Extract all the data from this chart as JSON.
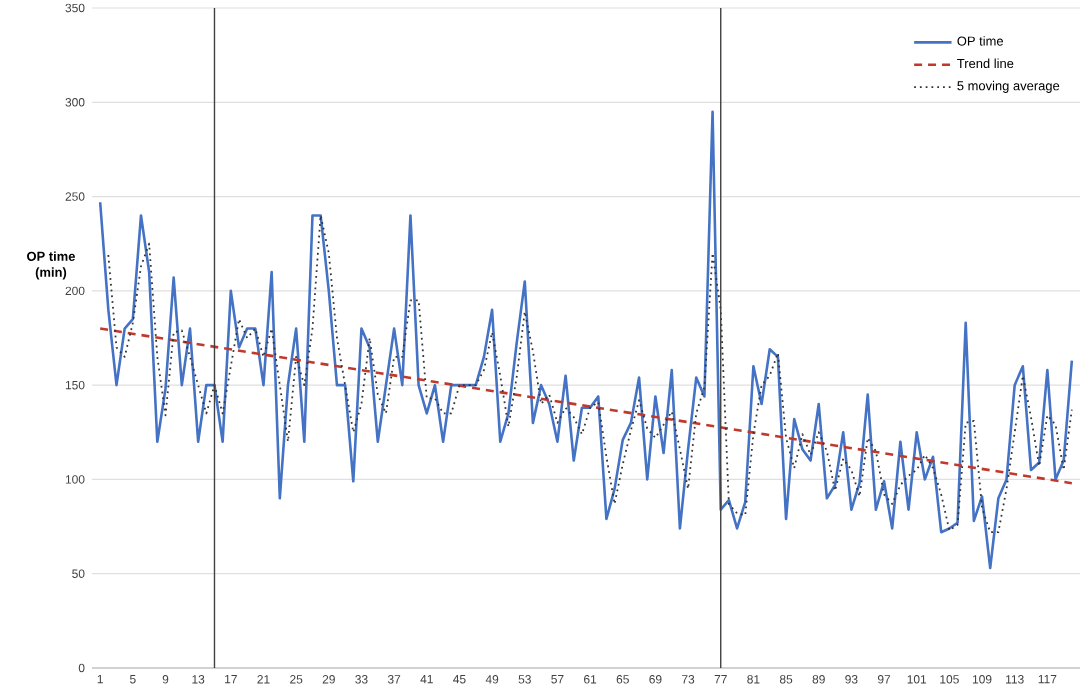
{
  "chart_data": {
    "type": "line",
    "ylabel": "OP time (min)",
    "marker": "none",
    "grid": "y",
    "legend": "top right",
    "x": [
      1,
      2,
      3,
      4,
      5,
      6,
      7,
      8,
      9,
      10,
      11,
      12,
      13,
      14,
      15,
      16,
      17,
      18,
      19,
      20,
      21,
      22,
      23,
      24,
      25,
      26,
      27,
      28,
      29,
      30,
      31,
      32,
      33,
      34,
      35,
      36,
      37,
      38,
      39,
      40,
      41,
      42,
      43,
      44,
      45,
      46,
      47,
      48,
      49,
      50,
      51,
      52,
      53,
      54,
      55,
      56,
      57,
      58,
      59,
      60,
      61,
      62,
      63,
      64,
      65,
      66,
      67,
      68,
      69,
      70,
      71,
      72,
      73,
      74,
      75,
      76,
      77,
      78,
      79,
      80,
      81,
      82,
      83,
      84,
      85,
      86,
      87,
      88,
      89,
      90,
      91,
      92,
      93,
      94,
      95,
      96,
      97,
      98,
      99,
      100,
      101,
      102,
      103,
      104,
      105,
      106,
      107,
      108,
      109,
      110,
      111,
      112,
      113,
      114,
      115,
      116,
      117,
      118,
      119,
      120
    ],
    "xlim": [
      0,
      121
    ],
    "xticks": [
      1,
      5,
      9,
      13,
      17,
      21,
      25,
      29,
      33,
      37,
      41,
      45,
      49,
      53,
      57,
      61,
      65,
      69,
      73,
      77,
      81,
      85,
      89,
      93,
      97,
      101,
      105,
      109,
      113,
      117
    ],
    "ylim": [
      0,
      350
    ],
    "yticks": [
      0,
      50,
      100,
      150,
      200,
      250,
      300,
      350
    ],
    "ref_lines": [
      {
        "axis": "x",
        "value": 15,
        "color": "#404040"
      },
      {
        "axis": "x",
        "value": 77,
        "color": "#404040"
      }
    ],
    "series": [
      {
        "name": "OP time",
        "color": "#4472c4",
        "line_style": "solid",
        "values": [
          247,
          190,
          150,
          180,
          185,
          240,
          210,
          120,
          148,
          207,
          150,
          180,
          120,
          150,
          150,
          120,
          200,
          170,
          180,
          180,
          150,
          210,
          90,
          150,
          180,
          120,
          240,
          240,
          200,
          150,
          150,
          99,
          180,
          170,
          120,
          150,
          180,
          150,
          240,
          150,
          135,
          150,
          120,
          150,
          150,
          150,
          150,
          165,
          190,
          120,
          135,
          172,
          205,
          130,
          150,
          140,
          120,
          155,
          110,
          138,
          138,
          144,
          79,
          95,
          121,
          130,
          154,
          100,
          144,
          114,
          158,
          74,
          116,
          154,
          144,
          295,
          84,
          89,
          74,
          88,
          160,
          140,
          169,
          165,
          79,
          132,
          116,
          110,
          140,
          90,
          97,
          125,
          84,
          98,
          145,
          84,
          99,
          74,
          120,
          84,
          125,
          100,
          112,
          72,
          74,
          77,
          183,
          78,
          91,
          53,
          90,
          100,
          150,
          160,
          105,
          109,
          158,
          100,
          110,
          163
        ]
      },
      {
        "name": "Trend line",
        "type": "line",
        "color": "#c0392b",
        "line_style": "dashed",
        "x": [
          1,
          120
        ],
        "values": [
          180,
          98
        ]
      },
      {
        "name": "5 moving average",
        "color": "#333333",
        "line_style": "dotted",
        "values": [
          null,
          219,
          170,
          165,
          183,
          213,
          225,
          165,
          134,
          178,
          179,
          165,
          150,
          135,
          150,
          135,
          160,
          185,
          175,
          180,
          165,
          180,
          150,
          120,
          165,
          150,
          180,
          240,
          220,
          175,
          150,
          125,
          140,
          175,
          145,
          135,
          165,
          165,
          195,
          195,
          143,
          143,
          135,
          135,
          150,
          150,
          150,
          158,
          178,
          155,
          128,
          154,
          189,
          168,
          140,
          145,
          130,
          138,
          133,
          124,
          138,
          141,
          112,
          87,
          108,
          126,
          142,
          127,
          122,
          129,
          136,
          116,
          95,
          135,
          149,
          220,
          190,
          87,
          82,
          81,
          124,
          150,
          155,
          167,
          122,
          106,
          124,
          113,
          125,
          115,
          94,
          111,
          105,
          91,
          122,
          115,
          92,
          87,
          97,
          102,
          105,
          113,
          106,
          92,
          73,
          76,
          130,
          131,
          85,
          72,
          72,
          95,
          125,
          155,
          133,
          107,
          134,
          129,
          105,
          137
        ]
      }
    ]
  }
}
